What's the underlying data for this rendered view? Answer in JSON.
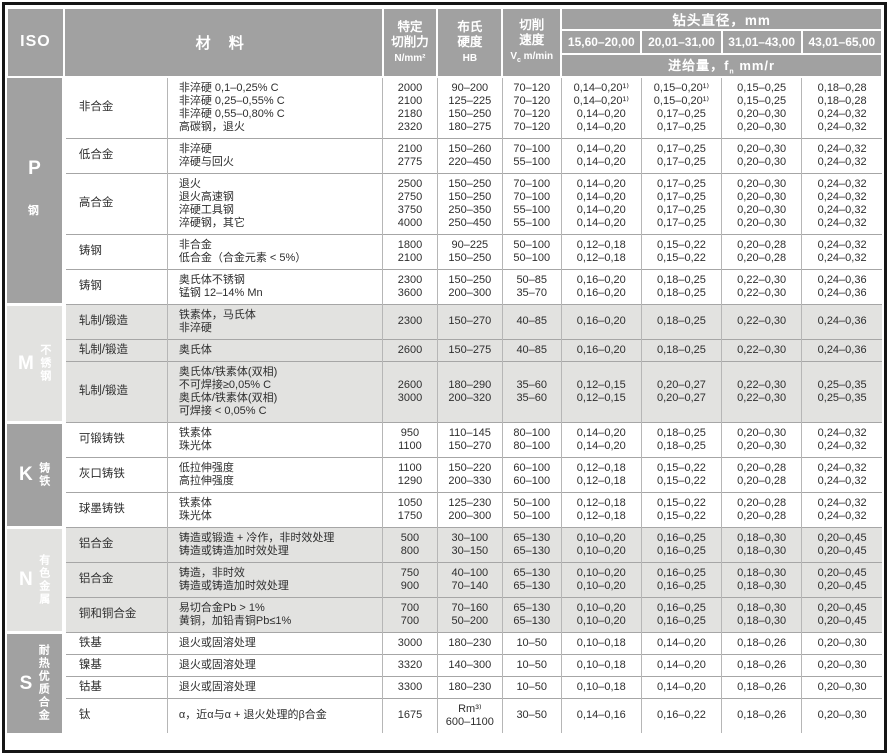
{
  "colors": {
    "header_bg": "#a1a1a1",
    "shaded_row": "#e2e2e0",
    "frame_border": "#151515",
    "grid_line": "#a6a6a6"
  },
  "header": {
    "iso": "ISO",
    "material": "材 料",
    "kc_line1": "特定",
    "kc_line2": "切削力",
    "kc_unit": "N/mm²",
    "hb_line1": "布氏",
    "hb_line2": "硬度",
    "hb_unit": "HB",
    "vc_line1": "切削",
    "vc_line2": "速度",
    "vc_unit_prefix": "V",
    "vc_unit_sub": "c",
    "vc_unit_suffix": " m/min",
    "drill_dia": "钻头直径，mm",
    "dia_ranges": [
      "15,60–20,00",
      "20,01–31,00",
      "31,01–43,00",
      "43,01–65,00"
    ],
    "feed_label": "进给量，",
    "feed_sym": "f",
    "feed_sym_sub": "n",
    "feed_unit": " mm/r"
  },
  "sections": [
    {
      "iso": "P",
      "iso_label": "钢",
      "shaded": false,
      "blocks": [
        {
          "category": "非合金",
          "desc": "非淬硬 0,1–0,25% C\n非淬硬 0,25–0,55% C\n非淬硬 0,55–0,80% C\n高碳钢，退火",
          "kc": "2000\n2100\n2180\n2320",
          "hb": "90–200\n125–225\n150–250\n180–275",
          "vc": "70–120\n70–120\n70–120\n70–120",
          "f1": "0,14–0,20¹⁾\n0,14–0,20¹⁾\n0,14–0,20\n0,14–0,20",
          "f2": "0,15–0,20¹⁾\n0,15–0,20¹⁾\n0,17–0,25\n0,17–0,25",
          "f3": "0,15–0,25\n0,15–0,25\n0,20–0,30\n0,20–0,30",
          "f4": "0,18–0,28\n0,18–0,28\n0,24–0,32\n0,24–0,32"
        },
        {
          "category": "低合金",
          "desc": "非淬硬\n淬硬与回火",
          "kc": "2100\n2775",
          "hb": "150–260\n220–450",
          "vc": "70–100\n55–100",
          "f1": "0,14–0,20\n0,14–0,20",
          "f2": "0,17–0,25\n0,17–0,25",
          "f3": "0,20–0,30\n0,20–0,30",
          "f4": "0,24–0,32\n0,24–0,32"
        },
        {
          "category": "高合金",
          "desc": "退火\n退火高速钢\n淬硬工具钢\n淬硬钢，其它",
          "kc": "2500\n2750\n3750\n4000",
          "hb": "150–250\n150–250\n250–350\n250–450",
          "vc": "70–100\n70–100\n55–100\n55–100",
          "f1": "0,14–0,20\n0,14–0,20\n0,14–0,20\n0,14–0,20",
          "f2": "0,17–0,25\n0,17–0,25\n0,17–0,25\n0,17–0,25",
          "f3": "0,20–0,30\n0,20–0,30\n0,20–0,30\n0,20–0,30",
          "f4": "0,24–0,32\n0,24–0,32\n0,24–0,32\n0,24–0,32"
        },
        {
          "category": "铸钢",
          "desc": "非合金\n低合金（合金元素 < 5%）",
          "kc": "1800\n2100",
          "hb": "90–225\n150–250",
          "vc": "50–100\n50–100",
          "f1": "0,12–0,18\n0,12–0,18",
          "f2": "0,15–0,22\n0,15–0,22",
          "f3": "0,20–0,28\n0,20–0,28",
          "f4": "0,24–0,32\n0,24–0,32"
        },
        {
          "category": "铸钢",
          "desc": "奥氏体不锈钢\n锰钢 12–14% Mn",
          "kc": "2300\n3600",
          "hb": "150–250\n200–300",
          "vc": "50–85\n35–70",
          "f1": "0,16–0,20\n0,16–0,20",
          "f2": "0,18–0,25\n0,18–0,25",
          "f3": "0,22–0,30\n0,22–0,30",
          "f4": "0,24–0,36\n0,24–0,36"
        }
      ]
    },
    {
      "iso": "M",
      "iso_label": "不锈钢",
      "shaded": true,
      "blocks": [
        {
          "category": "轧制/锻造",
          "desc": "铁素体，马氏体\n非淬硬",
          "kc": "2300",
          "hb": "150–270",
          "vc": "40–85",
          "f1": "0,16–0,20",
          "f2": "0,18–0,25",
          "f3": "0,22–0,30",
          "f4": "0,24–0,36"
        },
        {
          "category": "轧制/锻造",
          "desc": "奥氏体",
          "kc": "2600",
          "hb": "150–275",
          "vc": "40–85",
          "f1": "0,16–0,20",
          "f2": "0,18–0,25",
          "f3": "0,22–0,30",
          "f4": "0,24–0,36"
        },
        {
          "category": "轧制/锻造",
          "desc": "奥氏体/铁素体(双相)\n不可焊接≥0,05% C\n奥氏体/铁素体(双相)\n可焊接 < 0,05% C",
          "kc": "2600\n3000",
          "hb": "180–290\n200–320",
          "vc": "35–60\n35–60",
          "f1": "0,12–0,15\n0,12–0,15",
          "f2": "0,20–0,27\n0,20–0,27",
          "f3": "0,22–0,30\n0,22–0,30",
          "f4": "0,25–0,35\n0,25–0,35"
        }
      ]
    },
    {
      "iso": "K",
      "iso_label": "铸铁",
      "shaded": false,
      "blocks": [
        {
          "category": "可锻铸铁",
          "desc": "铁素体\n珠光体",
          "kc": "950\n1100",
          "hb": "110–145\n150–270",
          "vc": "80–100\n80–100",
          "f1": "0,14–0,20\n0,14–0,20",
          "f2": "0,18–0,25\n0,18–0,25",
          "f3": "0,20–0,30\n0,20–0,30",
          "f4": "0,24–0,32\n0,24–0,32"
        },
        {
          "category": "灰口铸铁",
          "desc": "低拉伸强度\n高拉伸强度",
          "kc": "1100\n1290",
          "hb": "150–220\n200–330",
          "vc": "60–100\n60–100",
          "f1": "0,12–0,18\n0,12–0,18",
          "f2": "0,15–0,22\n0,15–0,22",
          "f3": "0,20–0,28\n0,20–0,28",
          "f4": "0,24–0,32\n0,24–0,32"
        },
        {
          "category": "球墨铸铁",
          "desc": "铁素体\n珠光体",
          "kc": "1050\n1750",
          "hb": "125–230\n200–300",
          "vc": "50–100\n50–100",
          "f1": "0,12–0,18\n0,12–0,18",
          "f2": "0,15–0,22\n0,15–0,22",
          "f3": "0,20–0,28\n0,20–0,28",
          "f4": "0,24–0,32\n0,24–0,32"
        }
      ]
    },
    {
      "iso": "N",
      "iso_label": "有色金属",
      "shaded": true,
      "blocks": [
        {
          "category": "铝合金",
          "desc": "铸造或锻造 + 冷作，非时效处理\n铸造或铸造加时效处理",
          "kc": "500\n800",
          "hb": "30–100\n30–150",
          "vc": "65–130\n65–130",
          "f1": "0,10–0,20\n0,10–0,20",
          "f2": "0,16–0,25\n0,16–0,25",
          "f3": "0,18–0,30\n0,18–0,30",
          "f4": "0,20–0,45\n0,20–0,45"
        },
        {
          "category": "铝合金",
          "desc": "铸造，非时效\n铸造或铸造加时效处理",
          "kc": "750\n900",
          "hb": "40–100\n70–140",
          "vc": "65–130\n65–130",
          "f1": "0,10–0,20\n0,10–0,20",
          "f2": "0,16–0,25\n0,16–0,25",
          "f3": "0,18–0,30\n0,18–0,30",
          "f4": "0,20–0,45\n0,20–0,45"
        },
        {
          "category": "铜和铜合金",
          "desc": "易切合金Pb > 1%\n黄铜，加铅青铜Pb≤1%",
          "kc": "700\n700",
          "hb": "70–160\n50–200",
          "vc": "65–130\n65–130",
          "f1": "0,10–0,20\n0,10–0,20",
          "f2": "0,16–0,25\n0,16–0,25",
          "f3": "0,18–0,30\n0,18–0,30",
          "f4": "0,20–0,45\n0,20–0,45"
        }
      ]
    },
    {
      "iso": "S",
      "iso_label": "耐热优质合金",
      "shaded": false,
      "blocks": [
        {
          "category": "铁基",
          "desc": "退火或固溶处理",
          "kc": "3000",
          "hb": "180–230",
          "vc": "10–50",
          "f1": "0,10–0,18",
          "f2": "0,14–0,20",
          "f3": "0,18–0,26",
          "f4": "0,20–0,30"
        },
        {
          "category": "镍基",
          "desc": "退火或固溶处理",
          "kc": "3320",
          "hb": "140–300",
          "vc": "10–50",
          "f1": "0,10–0,18",
          "f2": "0,14–0,20",
          "f3": "0,18–0,26",
          "f4": "0,20–0,30"
        },
        {
          "category": "钴基",
          "desc": "退火或固溶处理",
          "kc": "3300",
          "hb": "180–230",
          "vc": "10–50",
          "f1": "0,10–0,18",
          "f2": "0,14–0,20",
          "f3": "0,18–0,26",
          "f4": "0,20–0,30"
        },
        {
          "category": "钛",
          "desc": "α，近α与α + 退火处理的β合金",
          "kc": "1675",
          "hb": "Rm³⁾\n600–1100",
          "vc": "30–50",
          "f1": "0,14–0,16",
          "f2": "0,16–0,22",
          "f3": "0,18–0,26",
          "f4": "0,20–0,30"
        }
      ]
    }
  ]
}
